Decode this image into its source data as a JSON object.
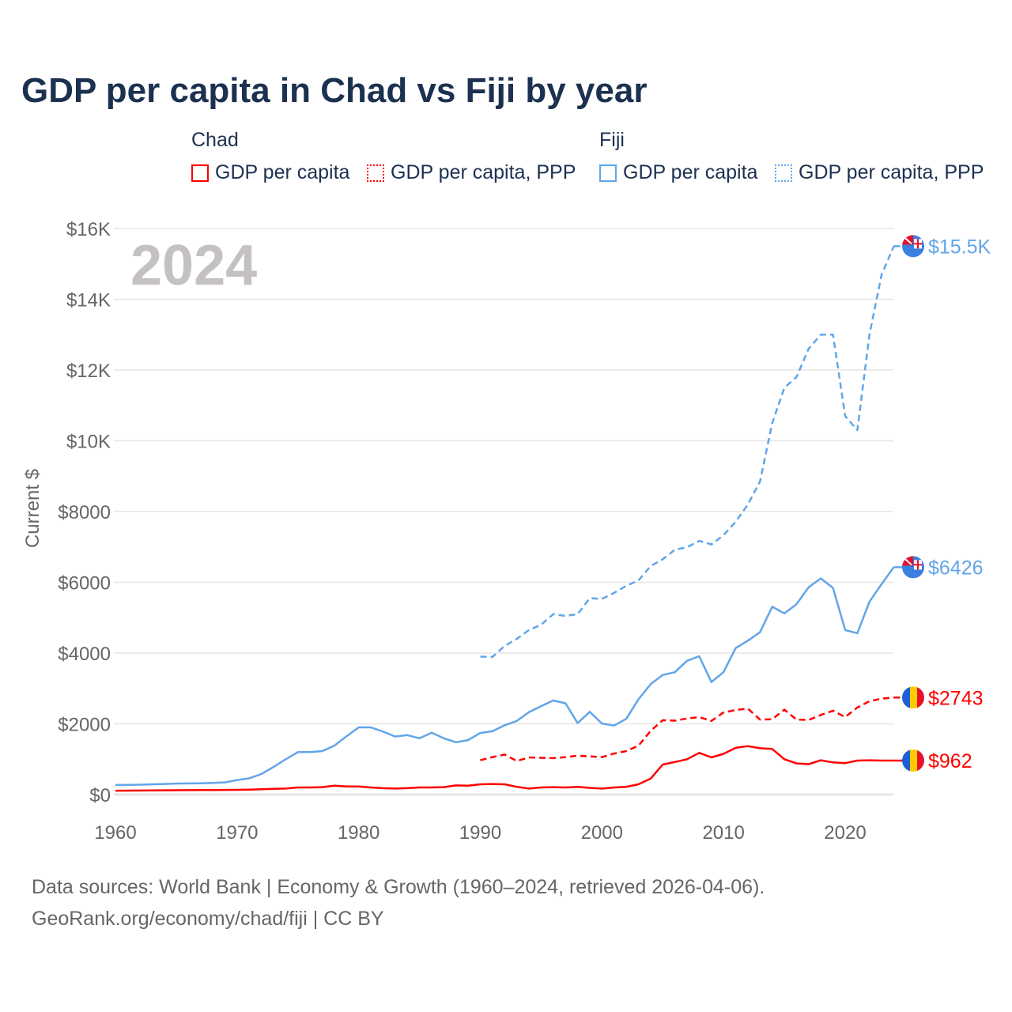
{
  "title": "GDP per capita in Chad vs Fiji by year",
  "legend": {
    "groups": [
      {
        "name": "Chad",
        "color": "#ff0000",
        "items": [
          "GDP per capita",
          "GDP per capita, PPP"
        ]
      },
      {
        "name": "Fiji",
        "color": "#62a5e8",
        "items": [
          "GDP per capita",
          "GDP per capita, PPP"
        ]
      }
    ]
  },
  "year_label": "2024",
  "footer": {
    "line1": "Data sources: World Bank | Economy & Growth (1960–2024, retrieved 2026-04-06).",
    "line2": "GeoRank.org/economy/chad/fiji | CC BY"
  },
  "chart_data": {
    "type": "line",
    "title": "GDP per capita in Chad vs Fiji by year",
    "xlabel": "",
    "ylabel": "Current $",
    "xlim": [
      1960,
      2024
    ],
    "ylim": [
      0,
      16000
    ],
    "x_ticks": [
      1960,
      1970,
      1980,
      1990,
      2000,
      2010,
      2020
    ],
    "x_tick_labels": [
      "1960",
      "1970",
      "1980",
      "1990",
      "2000",
      "2010",
      "2020"
    ],
    "y_ticks": [
      0,
      2000,
      4000,
      6000,
      8000,
      10000,
      12000,
      14000,
      16000
    ],
    "y_tick_labels": [
      "$0",
      "$2000",
      "$4000",
      "$6000",
      "$8000",
      "$10K",
      "$12K",
      "$14K",
      "$16K"
    ],
    "grid": true,
    "legend_position": "top",
    "series": [
      {
        "name": "Chad GDP per capita",
        "color": "#ff0000",
        "dash": "solid",
        "end_label": "$962",
        "flag": "chad",
        "start": 1960,
        "values": [
          110,
          112,
          115,
          118,
          120,
          122,
          125,
          128,
          130,
          132,
          135,
          140,
          150,
          160,
          170,
          200,
          200,
          210,
          250,
          230,
          230,
          200,
          180,
          170,
          180,
          200,
          200,
          210,
          260,
          250,
          290,
          300,
          290,
          220,
          170,
          200,
          210,
          200,
          220,
          190,
          170,
          200,
          220,
          290,
          450,
          850,
          920,
          1000,
          1180,
          1050,
          1150,
          1320,
          1370,
          1310,
          1290,
          1000,
          880,
          860,
          970,
          910,
          890,
          960,
          970,
          960,
          962
        ]
      },
      {
        "name": "Chad GDP per capita, PPP",
        "color": "#ff0000",
        "dash": "dashed",
        "end_label": "$2743",
        "flag": "chad",
        "start": 1990,
        "values": [
          970,
          1060,
          1130,
          950,
          1050,
          1040,
          1030,
          1060,
          1100,
          1080,
          1060,
          1160,
          1230,
          1380,
          1800,
          2100,
          2090,
          2150,
          2190,
          2080,
          2320,
          2390,
          2430,
          2120,
          2130,
          2400,
          2120,
          2110,
          2250,
          2370,
          2190,
          2460,
          2640,
          2710,
          2743
        ]
      },
      {
        "name": "Fiji GDP per capita",
        "color": "#62a5e8",
        "dash": "solid",
        "end_label": "$6426",
        "flag": "fiji",
        "start": 1960,
        "values": [
          270,
          275,
          280,
          290,
          300,
          310,
          315,
          320,
          330,
          345,
          410,
          460,
          580,
          780,
          1000,
          1200,
          1200,
          1230,
          1380,
          1650,
          1900,
          1900,
          1780,
          1640,
          1680,
          1590,
          1750,
          1590,
          1480,
          1540,
          1740,
          1790,
          1960,
          2080,
          2330,
          2500,
          2660,
          2580,
          2020,
          2340,
          2010,
          1950,
          2140,
          2690,
          3120,
          3380,
          3460,
          3780,
          3910,
          3180,
          3460,
          4140,
          4350,
          4590,
          5310,
          5120,
          5380,
          5860,
          6110,
          5840,
          4650,
          4560,
          5450,
          5950,
          6426
        ]
      },
      {
        "name": "Fiji GDP per capita, PPP",
        "color": "#62a5e8",
        "dash": "dashed",
        "end_label": "$15.5K",
        "flag": "fiji",
        "start": 1990,
        "values": [
          3900,
          3890,
          4200,
          4400,
          4650,
          4800,
          5100,
          5050,
          5100,
          5550,
          5530,
          5700,
          5900,
          6050,
          6460,
          6650,
          6920,
          6990,
          7170,
          7070,
          7330,
          7710,
          8200,
          8850,
          10500,
          11500,
          11800,
          12600,
          13000,
          13000,
          10700,
          10300,
          13000,
          14700,
          15500
        ]
      }
    ]
  }
}
